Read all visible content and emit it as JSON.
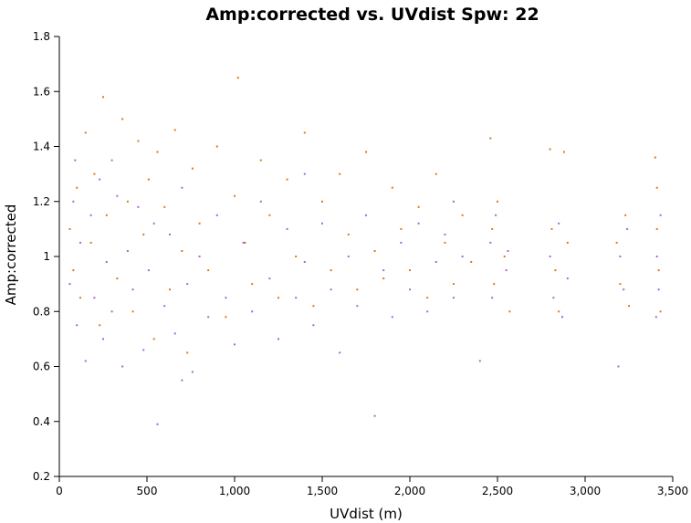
{
  "chart_data": {
    "type": "scatter",
    "title": "Amp:corrected vs. UVdist Spw: 22",
    "xlabel": "UVdist (m)",
    "ylabel": "Amp:corrected",
    "xlim": [
      0,
      3500
    ],
    "ylim": [
      0.2,
      1.8
    ],
    "xticks": [
      0,
      500,
      1000,
      1500,
      2000,
      2500,
      3000,
      3500
    ],
    "xtick_labels": [
      "0",
      "500",
      "1,000",
      "1,500",
      "2,000",
      "2,500",
      "3,000",
      "3,500"
    ],
    "yticks": [
      0.2,
      0.4,
      0.6,
      0.8,
      1.0,
      1.2,
      1.4,
      1.6,
      1.8
    ],
    "ytick_labels": [
      "0.2",
      "0.4",
      "0.6",
      "0.8",
      "1",
      "1.2",
      "1.4",
      "1.6",
      "1.8"
    ],
    "grid": false,
    "legend": "none",
    "series": [
      {
        "color": "#d97a1f",
        "points": [
          [
            60,
            1.1
          ],
          [
            80,
            0.95
          ],
          [
            100,
            1.25
          ],
          [
            120,
            0.85
          ],
          [
            150,
            1.45
          ],
          [
            180,
            1.05
          ],
          [
            200,
            1.3
          ],
          [
            230,
            0.75
          ],
          [
            250,
            1.58
          ],
          [
            270,
            1.15
          ],
          [
            300,
            1.35
          ],
          [
            330,
            0.92
          ],
          [
            360,
            1.5
          ],
          [
            390,
            1.2
          ],
          [
            420,
            0.8
          ],
          [
            450,
            1.42
          ],
          [
            480,
            1.08
          ],
          [
            510,
            1.28
          ],
          [
            540,
            0.7
          ],
          [
            560,
            1.38
          ],
          [
            600,
            1.18
          ],
          [
            630,
            0.88
          ],
          [
            660,
            1.46
          ],
          [
            700,
            1.02
          ],
          [
            730,
            0.65
          ],
          [
            760,
            1.32
          ],
          [
            800,
            1.12
          ],
          [
            850,
            0.95
          ],
          [
            900,
            1.4
          ],
          [
            950,
            0.78
          ],
          [
            1000,
            1.22
          ],
          [
            1020,
            1.65
          ],
          [
            1060,
            1.05
          ],
          [
            1100,
            0.9
          ],
          [
            1150,
            1.35
          ],
          [
            1200,
            1.15
          ],
          [
            1250,
            0.85
          ],
          [
            1300,
            1.28
          ],
          [
            1350,
            1.0
          ],
          [
            1400,
            1.45
          ],
          [
            1450,
            0.82
          ],
          [
            1500,
            1.2
          ],
          [
            1550,
            0.95
          ],
          [
            1600,
            1.3
          ],
          [
            1650,
            1.08
          ],
          [
            1700,
            0.88
          ],
          [
            1750,
            1.38
          ],
          [
            1800,
            1.02
          ],
          [
            1850,
            0.92
          ],
          [
            1900,
            1.25
          ],
          [
            1950,
            1.1
          ],
          [
            2000,
            0.95
          ],
          [
            2050,
            1.18
          ],
          [
            2100,
            0.85
          ],
          [
            2150,
            1.3
          ],
          [
            2200,
            1.05
          ],
          [
            2250,
            0.9
          ],
          [
            2300,
            1.15
          ],
          [
            2350,
            0.98
          ],
          [
            2460,
            1.43
          ],
          [
            2470,
            1.1
          ],
          [
            2480,
            0.9
          ],
          [
            2500,
            1.2
          ],
          [
            2540,
            1.0
          ],
          [
            2570,
            0.8
          ],
          [
            2800,
            1.39
          ],
          [
            2810,
            1.1
          ],
          [
            2830,
            0.95
          ],
          [
            2850,
            0.8
          ],
          [
            2880,
            1.38
          ],
          [
            2900,
            1.05
          ],
          [
            3180,
            1.05
          ],
          [
            3200,
            0.9
          ],
          [
            3230,
            1.15
          ],
          [
            3250,
            0.82
          ],
          [
            3400,
            1.36
          ],
          [
            3410,
            1.1
          ],
          [
            3420,
            0.95
          ],
          [
            3430,
            0.8
          ],
          [
            3410,
            1.25
          ]
        ]
      },
      {
        "color": "#a866d6",
        "points": [
          [
            60,
            0.9
          ],
          [
            80,
            1.2
          ],
          [
            100,
            0.75
          ],
          [
            120,
            1.05
          ],
          [
            150,
            0.62
          ],
          [
            180,
            1.15
          ],
          [
            200,
            0.85
          ],
          [
            230,
            1.28
          ],
          [
            250,
            0.7
          ],
          [
            270,
            0.98
          ],
          [
            300,
            0.8
          ],
          [
            330,
            1.22
          ],
          [
            360,
            0.6
          ],
          [
            390,
            1.02
          ],
          [
            420,
            0.88
          ],
          [
            450,
            1.18
          ],
          [
            480,
            0.66
          ],
          [
            510,
            0.95
          ],
          [
            540,
            1.12
          ],
          [
            560,
            0.39
          ],
          [
            600,
            0.82
          ],
          [
            630,
            1.08
          ],
          [
            660,
            0.72
          ],
          [
            700,
            1.25
          ],
          [
            730,
            0.9
          ],
          [
            760,
            0.58
          ],
          [
            800,
            1.0
          ],
          [
            850,
            0.78
          ],
          [
            900,
            1.15
          ],
          [
            950,
            0.85
          ],
          [
            1000,
            0.68
          ],
          [
            1050,
            1.05
          ],
          [
            1100,
            0.8
          ],
          [
            1150,
            1.2
          ],
          [
            1200,
            0.92
          ],
          [
            1250,
            0.7
          ],
          [
            1300,
            1.1
          ],
          [
            1350,
            0.85
          ],
          [
            1400,
            0.98
          ],
          [
            1450,
            0.75
          ],
          [
            1500,
            1.12
          ],
          [
            1550,
            0.88
          ],
          [
            1600,
            0.65
          ],
          [
            1650,
            1.0
          ],
          [
            1700,
            0.82
          ],
          [
            1750,
            1.15
          ],
          [
            1800,
            0.42
          ],
          [
            1850,
            0.95
          ],
          [
            1900,
            0.78
          ],
          [
            1950,
            1.05
          ],
          [
            2000,
            0.88
          ],
          [
            2050,
            1.12
          ],
          [
            2100,
            0.8
          ],
          [
            2150,
            0.98
          ],
          [
            2200,
            1.08
          ],
          [
            2250,
            0.85
          ],
          [
            2300,
            1.0
          ],
          [
            2400,
            0.62
          ],
          [
            2460,
            1.05
          ],
          [
            2470,
            0.85
          ],
          [
            2490,
            1.15
          ],
          [
            2550,
            0.95
          ],
          [
            2800,
            1.0
          ],
          [
            2820,
            0.85
          ],
          [
            2850,
            1.12
          ],
          [
            2870,
            0.78
          ],
          [
            3190,
            0.6
          ],
          [
            3200,
            1.0
          ],
          [
            3220,
            0.88
          ],
          [
            3410,
            1.0
          ],
          [
            3420,
            0.88
          ],
          [
            3430,
            1.15
          ],
          [
            3405,
            0.78
          ],
          [
            90,
            1.35
          ],
          [
            700,
            0.55
          ],
          [
            1400,
            1.3
          ],
          [
            2250,
            1.2
          ],
          [
            2560,
            1.02
          ],
          [
            2900,
            0.92
          ],
          [
            3240,
            1.1
          ]
        ]
      }
    ]
  }
}
